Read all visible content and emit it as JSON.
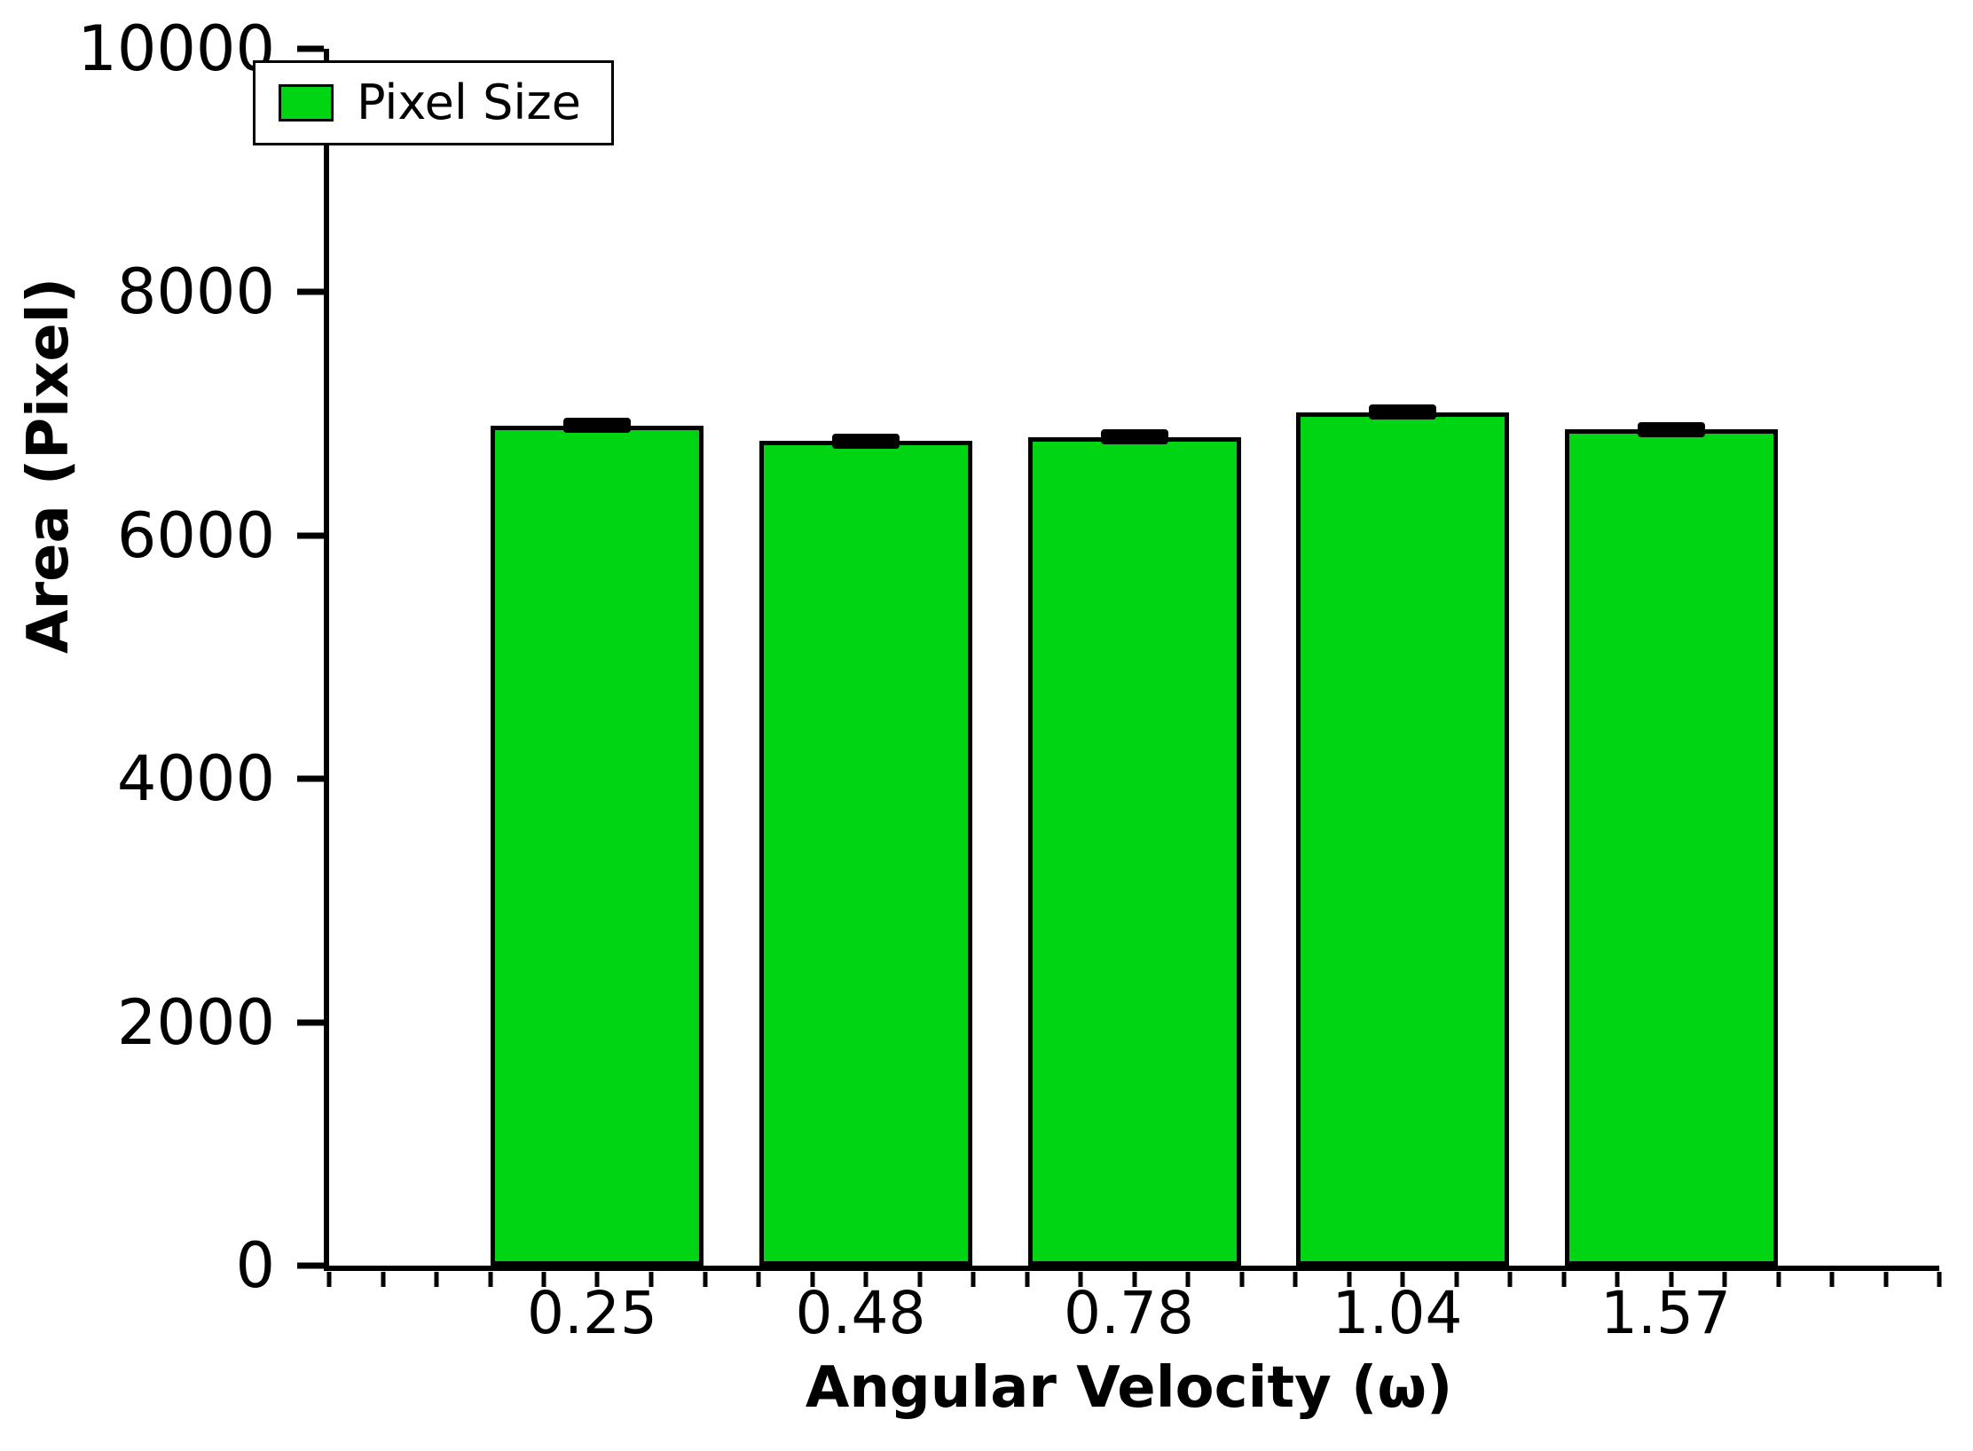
{
  "chart_data": {
    "type": "bar",
    "xlabel": "Angular Velocity (ω)",
    "ylabel": "Area (Pixel)",
    "categories": [
      "0.25",
      "0.48",
      "0.78",
      "1.04",
      "1.57"
    ],
    "series": [
      {
        "name": "Pixel Size",
        "values": [
          6900,
          6780,
          6810,
          7010,
          6870
        ],
        "errors": [
          70,
          60,
          60,
          70,
          60
        ]
      }
    ],
    "ylim": [
      0,
      10000
    ],
    "yticks": [
      0,
      2000,
      4000,
      6000,
      8000,
      10000
    ],
    "minor_ticks_x": 31,
    "grid": false,
    "legend": {
      "position": "top-left",
      "label": "Pixel Size"
    },
    "colors": {
      "bar_fill": "#00d513",
      "bar_border": "#000000",
      "error_bar": "#000000",
      "axis": "#000000",
      "background": "#ffffff"
    }
  }
}
